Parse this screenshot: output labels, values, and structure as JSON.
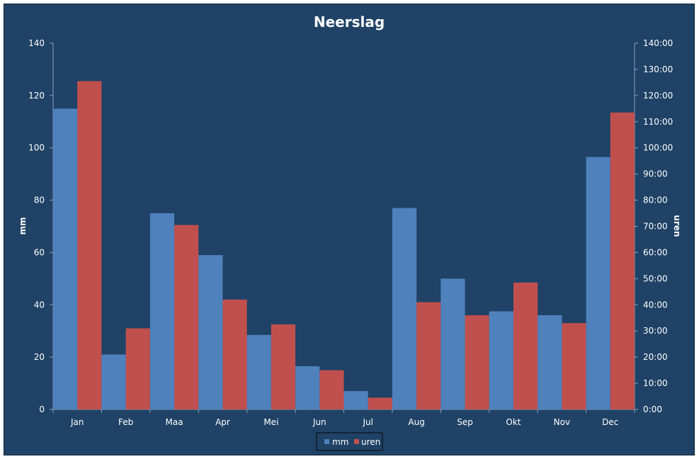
{
  "chart_data": {
    "type": "bar",
    "title": "Neerslag",
    "ylabel_left": "mm",
    "ylabel_right": "uren",
    "categories": [
      "Jan",
      "Feb",
      "Maa",
      "Apr",
      "Mei",
      "Jun",
      "Jul",
      "Aug",
      "Sep",
      "Okt",
      "Nov",
      "Dec"
    ],
    "series": [
      {
        "name": "mm",
        "axis": "left",
        "color": "#4f81bd",
        "values": [
          115,
          21,
          75,
          59,
          28.5,
          16.5,
          7,
          77,
          50,
          37.5,
          36,
          96.5
        ]
      },
      {
        "name": "uren",
        "axis": "right",
        "color": "#c0504d",
        "values": [
          "125:30",
          "31:00",
          "70:30",
          "42:00",
          "32:30",
          "15:00",
          "4:30",
          "41:00",
          "36:00",
          "48:30",
          "33:00",
          "113:30"
        ]
      }
    ],
    "ylim_left": [
      0,
      140
    ],
    "ylim_right": [
      "0:00",
      "140:00"
    ],
    "yticks_left": [
      "0",
      "20",
      "40",
      "60",
      "80",
      "100",
      "120",
      "140"
    ],
    "yticks_right": [
      "0:00",
      "10:00",
      "20:00",
      "30:00",
      "40:00",
      "50:00",
      "60:00",
      "70:00",
      "80:00",
      "90:00",
      "100:00",
      "110:00",
      "120:00",
      "130:00",
      "140:00"
    ],
    "grid": false,
    "legend": "bottom"
  },
  "colors": {
    "background": "#1f4266",
    "axis": "#8aa2bd",
    "text": "#ffffff"
  }
}
